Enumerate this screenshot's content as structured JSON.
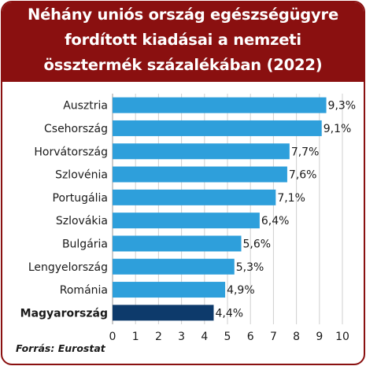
{
  "title_lines": [
    "Néhány uniós ország egészségügyre",
    "fordított kiadásai a nemzeti",
    "össztermék százalékában (2022)"
  ],
  "source": "Forrás: Eurostat",
  "colors": {
    "header_bg": "#8a1010",
    "bar": "#2e9fdb",
    "bar_highlight": "#0d3a6b"
  },
  "chart_data": {
    "type": "bar",
    "orientation": "horizontal",
    "title": "Néhány uniós ország egészségügyre fordított kiadásai a nemzeti össztermék százalékában (2022)",
    "categories": [
      "Ausztria",
      "Csehország",
      "Horvátország",
      "Szlovénia",
      "Portugália",
      "Szlovákia",
      "Bulgária",
      "Lengyelország",
      "Románia",
      "Magyarország"
    ],
    "values": [
      9.3,
      9.1,
      7.7,
      7.6,
      7.1,
      6.4,
      5.6,
      5.3,
      4.9,
      4.4
    ],
    "value_labels": [
      "9,3%",
      "9,1%",
      "7,7%",
      "7,6%",
      "7,1%",
      "6,4%",
      "5,6%",
      "5,3%",
      "4,9%",
      "4,4%"
    ],
    "highlight": "Magyarország",
    "xlim": [
      0,
      10
    ],
    "xticks": [
      0,
      1,
      2,
      3,
      4,
      5,
      6,
      7,
      8,
      9,
      10
    ],
    "grid": true,
    "xlabel": "",
    "ylabel": ""
  }
}
